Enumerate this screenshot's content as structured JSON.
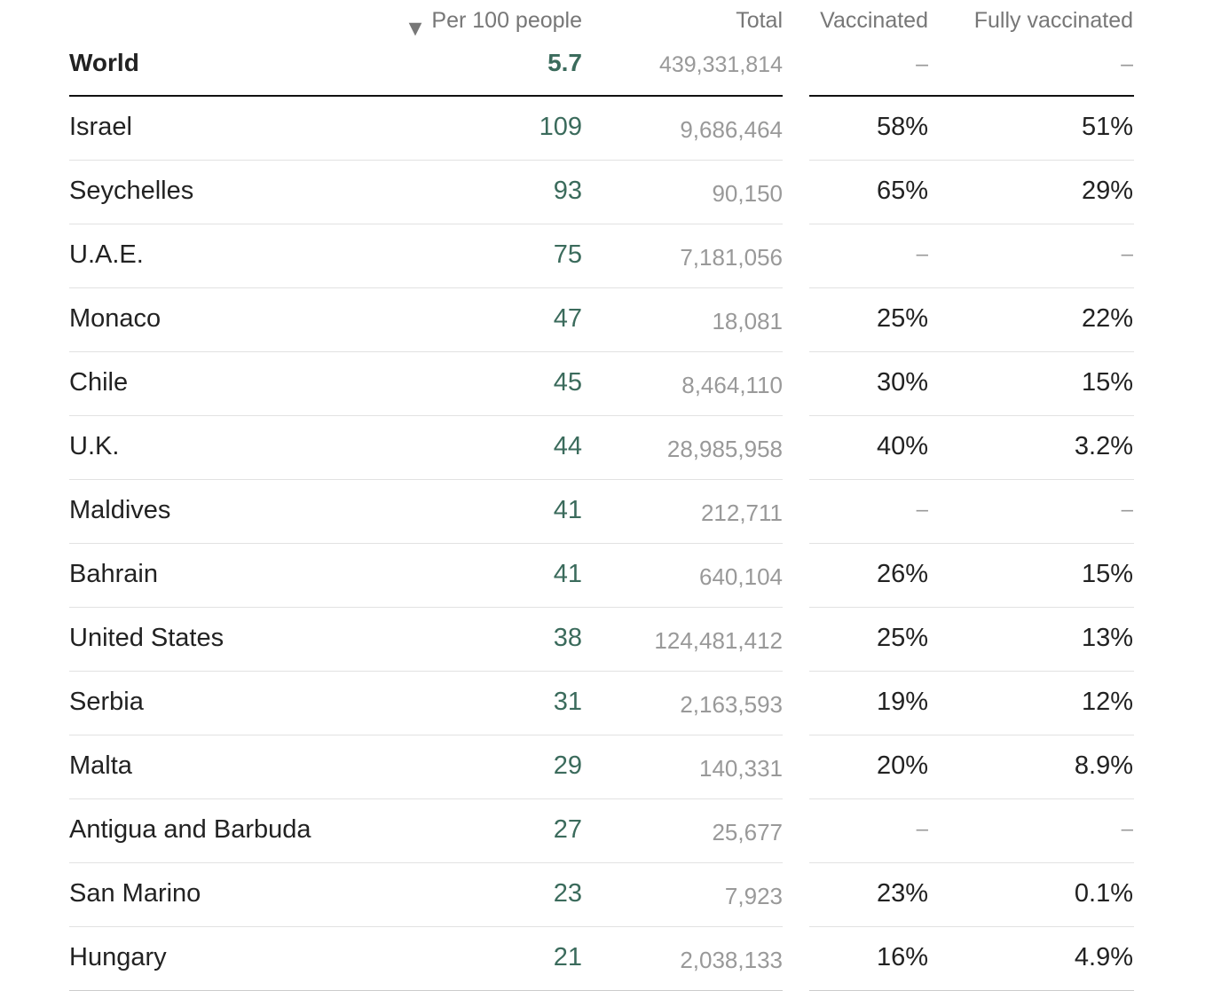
{
  "header": {
    "sort_arrow": "▼",
    "per100_label": "Per 100 people",
    "total_label": "Total",
    "vaccinated_label": "Vaccinated",
    "fully_vaccinated_label": "Fully vaccinated",
    "sort_direction": "descending"
  },
  "world": {
    "name": "World",
    "per100": "5.7",
    "total": "439,331,814",
    "vaccinated": "–",
    "fully_vaccinated": "–"
  },
  "rows": [
    {
      "country": "Israel",
      "per100": "109",
      "total": "9,686,464",
      "vaccinated": "58%",
      "fully_vaccinated": "51%"
    },
    {
      "country": "Seychelles",
      "per100": "93",
      "total": "90,150",
      "vaccinated": "65%",
      "fully_vaccinated": "29%"
    },
    {
      "country": "U.A.E.",
      "per100": "75",
      "total": "7,181,056",
      "vaccinated": "–",
      "fully_vaccinated": "–"
    },
    {
      "country": "Monaco",
      "per100": "47",
      "total": "18,081",
      "vaccinated": "25%",
      "fully_vaccinated": "22%"
    },
    {
      "country": "Chile",
      "per100": "45",
      "total": "8,464,110",
      "vaccinated": "30%",
      "fully_vaccinated": "15%"
    },
    {
      "country": "U.K.",
      "per100": "44",
      "total": "28,985,958",
      "vaccinated": "40%",
      "fully_vaccinated": "3.2%"
    },
    {
      "country": "Maldives",
      "per100": "41",
      "total": "212,711",
      "vaccinated": "–",
      "fully_vaccinated": "–"
    },
    {
      "country": "Bahrain",
      "per100": "41",
      "total": "640,104",
      "vaccinated": "26%",
      "fully_vaccinated": "15%"
    },
    {
      "country": "United States",
      "per100": "38",
      "total": "124,481,412",
      "vaccinated": "25%",
      "fully_vaccinated": "13%"
    },
    {
      "country": "Serbia",
      "per100": "31",
      "total": "2,163,593",
      "vaccinated": "19%",
      "fully_vaccinated": "12%"
    },
    {
      "country": "Malta",
      "per100": "29",
      "total": "140,331",
      "vaccinated": "20%",
      "fully_vaccinated": "8.9%"
    },
    {
      "country": "Antigua and Barbuda",
      "per100": "27",
      "total": "25,677",
      "vaccinated": "–",
      "fully_vaccinated": "–"
    },
    {
      "country": "San Marino",
      "per100": "23",
      "total": "7,923",
      "vaccinated": "23%",
      "fully_vaccinated": "0.1%"
    },
    {
      "country": "Hungary",
      "per100": "21",
      "total": "2,038,133",
      "vaccinated": "16%",
      "fully_vaccinated": "4.9%"
    }
  ],
  "colors": {
    "per100_text": "#3b6b5c",
    "country_text": "#222222",
    "muted_text": "#999999",
    "header_text": "#777777",
    "divider": "#e2e2e2",
    "rule": "#111111"
  }
}
